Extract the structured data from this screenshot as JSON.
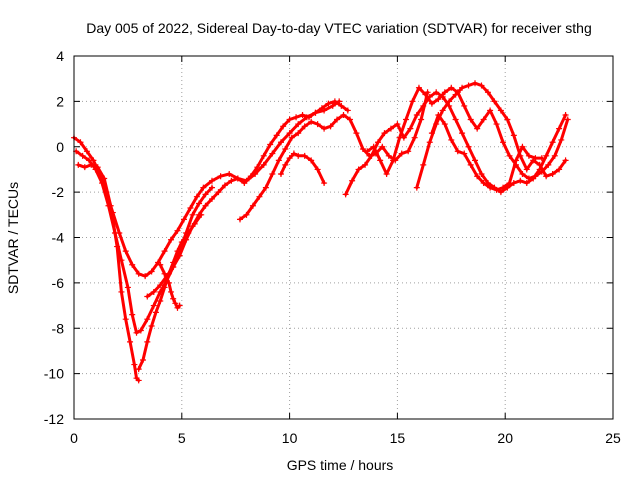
{
  "chart_data": {
    "type": "scatter",
    "title": "Day 005 of 2022, Sidereal Day-to-day VTEC variation (SDTVAR) for receiver sthg",
    "xlabel": "GPS time / hours",
    "ylabel": "SDTVAR / TECUs",
    "xlim": [
      0,
      25
    ],
    "ylim": [
      -12,
      4
    ],
    "xticks": [
      0,
      5,
      10,
      15,
      20,
      25
    ],
    "yticks": [
      4,
      2,
      0,
      -2,
      -4,
      -6,
      -8,
      -10,
      -12
    ],
    "xtick_labels": [
      "0",
      "5",
      "10",
      "15",
      "20",
      "25"
    ],
    "ytick_labels": [
      "4",
      "2",
      "0",
      "-2",
      "-4",
      "-6",
      "-8",
      "-10",
      "-12"
    ],
    "grid": true,
    "marker": "+",
    "color": "#ff0000",
    "series": [
      {
        "x": [
          0.0,
          0.3,
          0.6,
          0.9,
          1.2,
          1.5,
          1.8,
          2.1,
          2.4,
          2.7,
          3.0,
          3.3,
          3.6,
          3.9,
          4.2,
          4.5,
          4.8,
          5.1,
          5.4,
          5.7,
          6.0,
          6.4,
          6.8,
          7.2,
          7.6,
          8.0,
          8.4,
          8.8,
          9.2,
          9.6,
          10.0,
          10.4,
          10.8,
          11.2,
          11.6,
          12.0,
          12.3
        ],
        "y": [
          0.4,
          0.2,
          -0.2,
          -0.6,
          -1.2,
          -2.0,
          -2.9,
          -3.8,
          -4.6,
          -5.2,
          -5.6,
          -5.7,
          -5.5,
          -5.1,
          -4.6,
          -4.1,
          -3.7,
          -3.2,
          -2.7,
          -2.2,
          -1.8,
          -1.5,
          -1.3,
          -1.2,
          -1.4,
          -1.5,
          -1.2,
          -0.8,
          -0.3,
          0.2,
          0.6,
          1.0,
          1.3,
          1.5,
          1.6,
          1.8,
          2.0
        ]
      },
      {
        "x": [
          0.1,
          0.4,
          0.7,
          1.0,
          1.3,
          1.6,
          1.9,
          2.2,
          2.5,
          2.7,
          2.9,
          3.1,
          3.4,
          3.7,
          4.0,
          4.3,
          4.6,
          4.9,
          5.2,
          5.5,
          5.8,
          6.1,
          6.4
        ],
        "y": [
          -0.2,
          -0.4,
          -0.6,
          -1.0,
          -1.6,
          -2.6,
          -3.8,
          -5.0,
          -6.2,
          -7.4,
          -8.2,
          -8.1,
          -7.6,
          -7.0,
          -6.4,
          -5.9,
          -5.3,
          -4.6,
          -3.8,
          -3.0,
          -2.5,
          -2.1,
          -1.8
        ]
      },
      {
        "x": [
          0.2,
          0.5,
          0.8,
          1.1,
          1.4,
          1.7,
          2.0,
          2.2,
          2.4,
          2.6,
          2.8,
          2.9,
          3.0
        ],
        "y": [
          -0.8,
          -0.9,
          -0.8,
          -0.9,
          -1.4,
          -2.6,
          -4.4,
          -6.4,
          -7.6,
          -8.6,
          -9.6,
          -10.2,
          -10.3
        ]
      },
      {
        "x": [
          3.0,
          3.2,
          3.4,
          3.6,
          3.8,
          4.0,
          4.2,
          4.4,
          4.6,
          4.8,
          5.0,
          5.3,
          5.6,
          5.9
        ],
        "y": [
          -9.8,
          -9.4,
          -8.6,
          -7.9,
          -7.3,
          -6.8,
          -6.2,
          -5.6,
          -5.1,
          -4.6,
          -4.2,
          -3.8,
          -3.4,
          -3.0
        ]
      },
      {
        "x": [
          3.4,
          3.7,
          4.0,
          4.3,
          4.6,
          4.9,
          5.2,
          5.5,
          5.8,
          6.1,
          6.4,
          6.7,
          7.0,
          7.3,
          7.6,
          7.9,
          8.2,
          8.5,
          8.8,
          9.1,
          9.4,
          9.7,
          10.0,
          10.3,
          10.6,
          10.9,
          11.2,
          11.5,
          11.8,
          12.1,
          12.4,
          12.7
        ],
        "y": [
          -6.6,
          -6.4,
          -6.1,
          -5.7,
          -5.3,
          -4.8,
          -4.1,
          -3.5,
          -3.0,
          -2.6,
          -2.3,
          -2.0,
          -1.7,
          -1.5,
          -1.4,
          -1.6,
          -1.3,
          -0.9,
          -0.4,
          0.1,
          0.5,
          0.9,
          1.2,
          1.3,
          1.4,
          1.3,
          1.5,
          1.7,
          1.9,
          2.0,
          1.8,
          1.6
        ]
      },
      {
        "x": [
          4.0,
          4.2,
          4.4,
          4.5,
          4.6,
          4.7,
          4.8,
          4.9
        ],
        "y": [
          -5.2,
          -5.6,
          -6.0,
          -6.4,
          -6.7,
          -6.9,
          -7.1,
          -7.0
        ]
      },
      {
        "x": [
          7.7,
          8.0,
          8.3,
          8.6,
          8.9,
          9.2,
          9.5,
          9.8,
          10.1,
          10.4,
          10.7,
          11.0,
          11.3,
          11.6,
          11.9,
          12.2,
          12.5,
          12.8,
          13.1,
          13.4,
          13.7,
          14.0,
          14.3,
          14.6,
          14.9,
          15.2,
          15.5,
          15.8,
          16.1,
          16.4
        ],
        "y": [
          -3.2,
          -3.0,
          -2.6,
          -2.2,
          -1.8,
          -1.2,
          -0.6,
          -0.1,
          0.4,
          0.6,
          0.9,
          1.1,
          1.0,
          0.8,
          0.9,
          1.2,
          1.4,
          1.2,
          0.6,
          -0.1,
          -0.4,
          -0.3,
          0.0,
          -0.4,
          -0.6,
          -0.3,
          -0.2,
          0.4,
          1.2,
          2.4
        ]
      },
      {
        "x": [
          9.6,
          9.8,
          10.0,
          10.2,
          10.4,
          10.7,
          11.0,
          11.3,
          11.6
        ],
        "y": [
          -1.2,
          -0.8,
          -0.5,
          -0.3,
          -0.4,
          -0.4,
          -0.6,
          -1.0,
          -1.6
        ]
      },
      {
        "x": [
          12.6,
          12.9,
          13.2,
          13.5,
          13.8,
          14.1,
          14.4,
          14.7,
          15.0,
          15.3,
          15.6,
          15.9,
          16.2,
          16.5,
          16.8,
          17.1,
          17.4,
          17.7,
          18.0,
          18.3,
          18.6,
          18.9,
          19.2,
          19.5,
          19.8,
          20.1,
          20.4,
          20.7,
          21.0,
          21.3,
          21.6,
          21.9,
          22.2,
          22.5,
          22.8
        ],
        "y": [
          -2.1,
          -1.5,
          -1.0,
          -0.8,
          -0.4,
          0.2,
          0.6,
          0.8,
          1.0,
          0.4,
          0.8,
          1.4,
          1.8,
          2.2,
          2.4,
          2.2,
          1.8,
          1.2,
          0.6,
          0.0,
          -0.6,
          -1.2,
          -1.6,
          -1.8,
          -2.0,
          -1.8,
          -1.6,
          -1.5,
          -1.6,
          -1.4,
          -1.0,
          -0.4,
          0.2,
          0.8,
          1.4
        ]
      },
      {
        "x": [
          13.6,
          13.9,
          14.2,
          14.5,
          14.8,
          15.1,
          15.4,
          15.7,
          16.0,
          16.3,
          16.6,
          16.9,
          17.2,
          17.5,
          17.8,
          18.1,
          18.4,
          18.7,
          19.0,
          19.3,
          19.6,
          19.9,
          20.2,
          20.5,
          20.8,
          21.1,
          21.4,
          21.7,
          22.0,
          22.3,
          22.6,
          22.9
        ],
        "y": [
          -0.2,
          0.0,
          -0.6,
          -1.2,
          -0.6,
          0.4,
          1.2,
          2.0,
          2.6,
          2.3,
          1.9,
          2.1,
          2.4,
          2.6,
          2.4,
          1.8,
          1.2,
          0.8,
          1.2,
          1.6,
          1.0,
          0.2,
          -0.4,
          -0.8,
          -1.2,
          -1.4,
          -1.3,
          -1.1,
          -0.8,
          -0.4,
          0.3,
          1.2
        ]
      },
      {
        "x": [
          15.9,
          16.2,
          16.5,
          16.8,
          17.1,
          17.4,
          17.7,
          18.0,
          18.3,
          18.6,
          18.9,
          19.2,
          19.5,
          19.8,
          20.1,
          20.4,
          20.7,
          21.0,
          21.3,
          21.6,
          21.9,
          22.2,
          22.5,
          22.8
        ],
        "y": [
          -1.8,
          -0.8,
          0.2,
          1.0,
          1.6,
          2.0,
          2.3,
          2.6,
          2.7,
          2.8,
          2.7,
          2.4,
          2.0,
          1.6,
          1.2,
          0.5,
          -0.4,
          -1.0,
          -0.6,
          -0.8,
          -1.3,
          -1.2,
          -1.0,
          -0.6
        ]
      },
      {
        "x": [
          16.6,
          16.9,
          17.2,
          17.5,
          17.8,
          18.1,
          18.4,
          18.7,
          19.0,
          19.3,
          19.6,
          19.9,
          20.2,
          20.5,
          20.8,
          21.1,
          21.4,
          21.7
        ],
        "y": [
          0.6,
          1.4,
          1.0,
          0.3,
          -0.2,
          -0.3,
          -0.8,
          -1.3,
          -1.6,
          -1.8,
          -1.9,
          -1.8,
          -1.6,
          -0.6,
          0.0,
          -0.4,
          -0.5,
          -0.5
        ]
      }
    ]
  }
}
